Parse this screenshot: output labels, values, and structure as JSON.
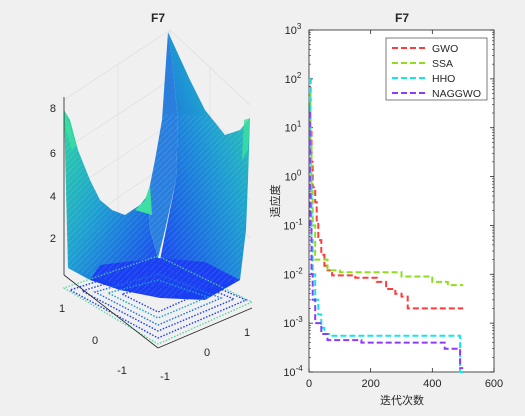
{
  "chart_data": [
    {
      "type": "surface",
      "title": "F7",
      "zticks": [
        "2",
        "4",
        "6",
        "8"
      ],
      "xticks": [
        "-1",
        "0",
        "1"
      ],
      "yticks": [
        "-1",
        "0",
        "1"
      ],
      "xlabel": "",
      "ylabel": "",
      "zlabel": "",
      "colormap": "winter",
      "colors": {
        "high": "#2fd5a0",
        "mid": "#1f9fd0",
        "low": "#1a3ff0",
        "contour": "#1a3ff0",
        "contour_low": "#4fd0a0"
      }
    },
    {
      "type": "line",
      "title": "F7",
      "xlabel": "迭代次数",
      "ylabel": "适应度",
      "xlim": [
        0,
        600
      ],
      "ylim": [
        0.0001,
        1000
      ],
      "yscale": "log",
      "xticks": [
        "0",
        "200",
        "400",
        "600"
      ],
      "yticks": [
        {
          "base": "10",
          "exp": "-4"
        },
        {
          "base": "10",
          "exp": "-3"
        },
        {
          "base": "10",
          "exp": "-2"
        },
        {
          "base": "10",
          "exp": "-1"
        },
        {
          "base": "10",
          "exp": "0"
        },
        {
          "base": "10",
          "exp": "1"
        },
        {
          "base": "10",
          "exp": "2"
        },
        {
          "base": "10",
          "exp": "3"
        }
      ],
      "legend_position": "top-right",
      "series": [
        {
          "name": "GWO",
          "color": "#ff3b3b",
          "x": [
            1,
            5,
            8,
            12,
            20,
            25,
            30,
            40,
            50,
            60,
            75,
            100,
            150,
            200,
            220,
            250,
            280,
            300,
            320,
            350,
            400,
            450,
            500
          ],
          "y": [
            100,
            10,
            2,
            0.6,
            0.3,
            0.12,
            0.05,
            0.025,
            0.015,
            0.012,
            0.0095,
            0.0095,
            0.0085,
            0.0085,
            0.007,
            0.005,
            0.004,
            0.0035,
            0.002,
            0.002,
            0.002,
            0.002,
            0.002
          ]
        },
        {
          "name": "SSA",
          "color": "#8ede1e",
          "x": [
            1,
            5,
            8,
            12,
            20,
            30,
            50,
            60,
            100,
            200,
            300,
            400,
            450,
            500
          ],
          "y": [
            50,
            5,
            0.5,
            0.1,
            0.02,
            0.02,
            0.02,
            0.012,
            0.011,
            0.011,
            0.009,
            0.007,
            0.006,
            0.006
          ]
        },
        {
          "name": "HHO",
          "color": "#14e6ea",
          "x": [
            1,
            3,
            5,
            8,
            12,
            20,
            30,
            40,
            50,
            70,
            100,
            200,
            300,
            400,
            480,
            490,
            500
          ],
          "y": [
            100,
            30,
            1,
            0.05,
            0.01,
            0.003,
            0.0015,
            0.0008,
            0.0006,
            0.00055,
            0.00055,
            0.00055,
            0.00055,
            0.00055,
            0.00055,
            0.0001,
            0.0001
          ]
        },
        {
          "name": "NAGGWO",
          "color": "#8a3cff",
          "x": [
            1,
            3,
            5,
            8,
            12,
            20,
            40,
            60,
            100,
            160,
            170,
            300,
            400,
            440,
            450,
            470,
            490,
            500
          ],
          "y": [
            20,
            0.5,
            0.1,
            0.01,
            0.003,
            0.001,
            0.0006,
            0.00045,
            0.00045,
            0.00045,
            0.0004,
            0.0004,
            0.0004,
            0.0003,
            0.0003,
            0.0003,
            0.00012,
            0.00012
          ]
        }
      ]
    }
  ]
}
